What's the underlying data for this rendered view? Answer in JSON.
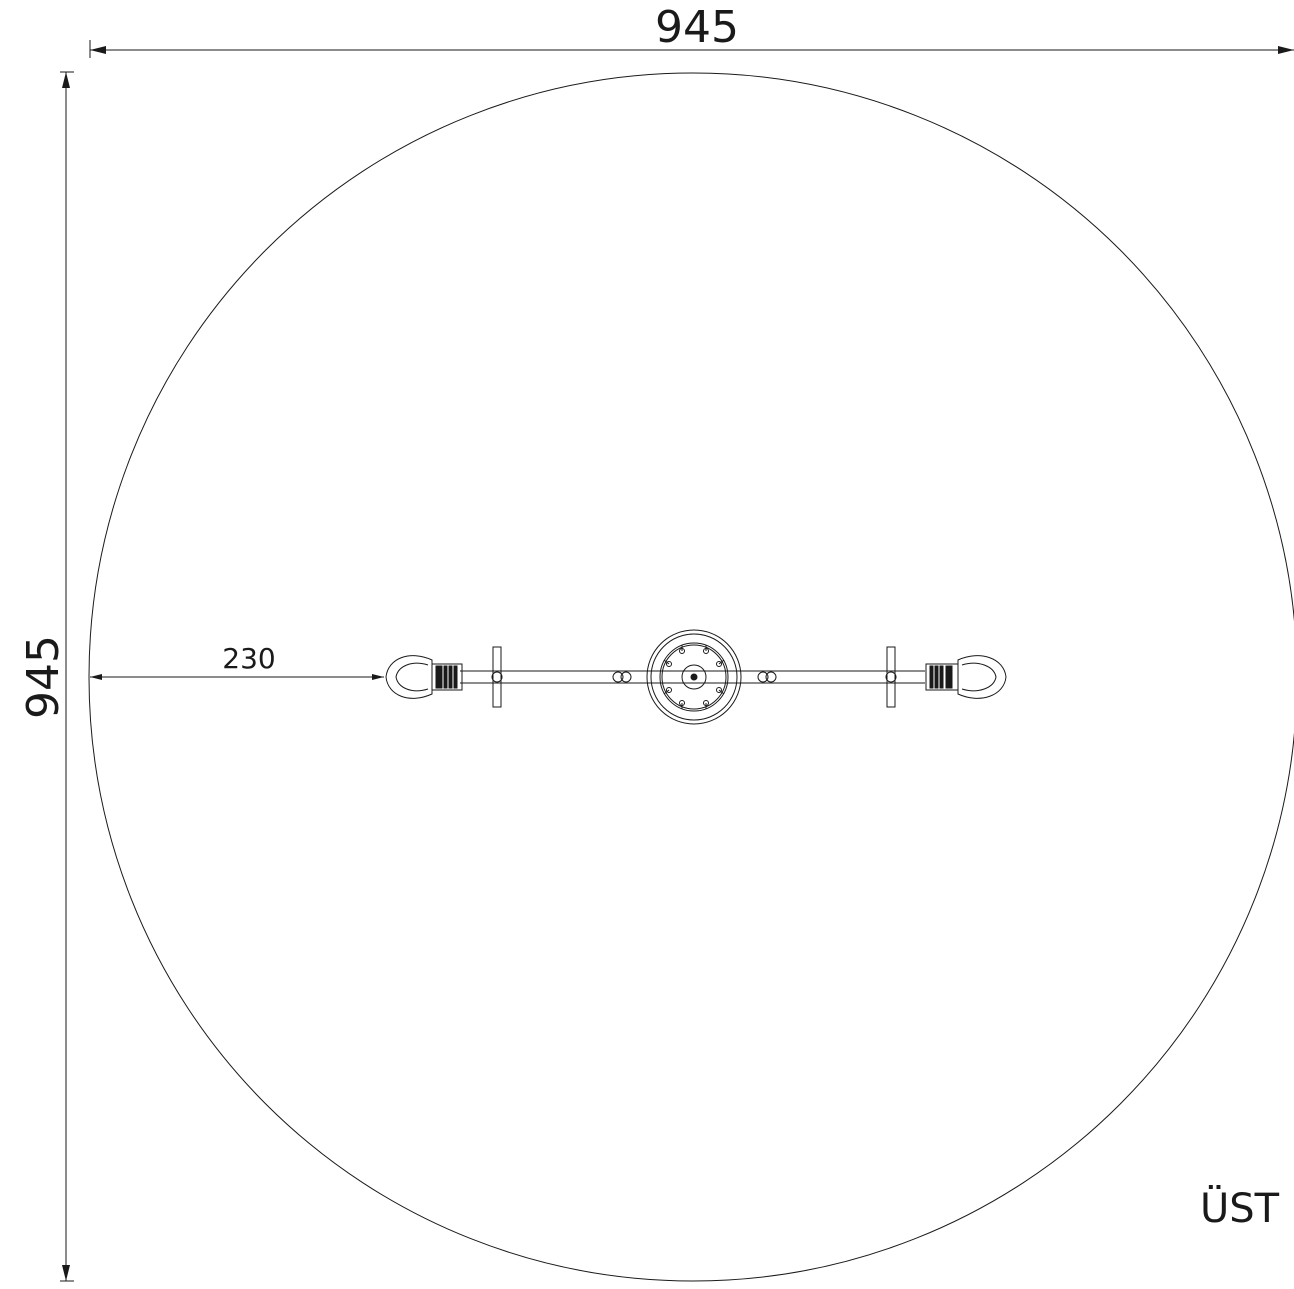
{
  "drawing": {
    "view_label": "ÜST",
    "dimensions": {
      "overall_width": "945",
      "overall_depth": "945",
      "offset_from_edge": "230"
    },
    "colors": {
      "line": "#1a1a1a",
      "background": "#ffffff"
    }
  }
}
